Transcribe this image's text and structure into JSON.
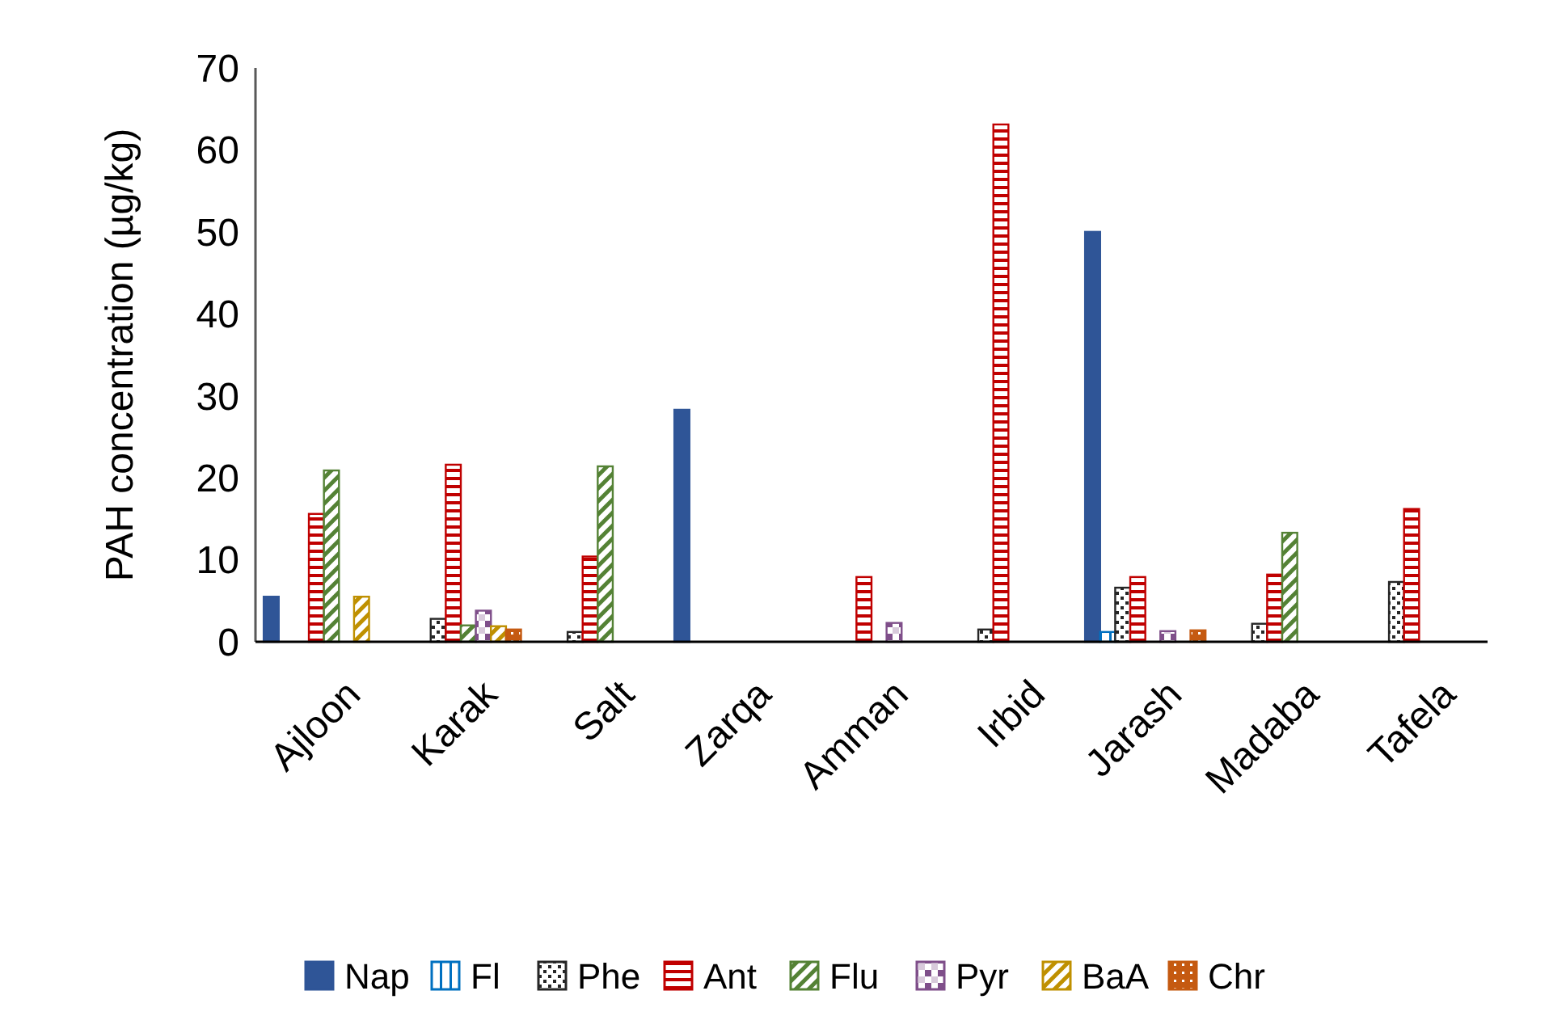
{
  "chart_data": {
    "type": "bar",
    "ylabel": "PAH concentration (µg/kg)",
    "categories": [
      "Ajloon",
      "Karak",
      "Salt",
      "Zarqa",
      "Amman",
      "Irbid",
      "Jarash",
      "Madaba",
      "Tafela"
    ],
    "series": [
      {
        "name": "Nap",
        "color": "#2f5597",
        "values": [
          5.5,
          null,
          null,
          28.3,
          null,
          null,
          50.0,
          null,
          null
        ]
      },
      {
        "name": "Fl",
        "color": "#0070c0",
        "values": [
          null,
          null,
          null,
          null,
          null,
          null,
          1.2,
          null,
          null
        ]
      },
      {
        "name": "Phe",
        "color": "#262626",
        "values": [
          null,
          2.8,
          1.2,
          null,
          null,
          1.5,
          6.6,
          2.2,
          7.3
        ]
      },
      {
        "name": "Ant",
        "color": "#c00000",
        "values": [
          15.6,
          21.6,
          10.4,
          null,
          7.9,
          63.1,
          7.9,
          8.2,
          16.2
        ]
      },
      {
        "name": "Flu",
        "color": "#548235",
        "values": [
          20.9,
          2.0,
          21.4,
          null,
          null,
          null,
          null,
          13.3,
          null
        ]
      },
      {
        "name": "Pyr",
        "color": "#7f4f8a",
        "values": [
          null,
          3.8,
          null,
          null,
          2.3,
          null,
          1.3,
          null,
          null
        ]
      },
      {
        "name": "BaA",
        "color": "#bf9000",
        "values": [
          5.5,
          1.9,
          null,
          null,
          null,
          null,
          null,
          null,
          null
        ]
      },
      {
        "name": "Chr",
        "color": "#c55a11",
        "values": [
          null,
          1.5,
          null,
          null,
          null,
          null,
          1.4,
          null,
          null
        ]
      }
    ],
    "ylim": [
      0,
      70
    ],
    "yticks": [
      0,
      10,
      20,
      30,
      40,
      50,
      60,
      70
    ],
    "grid": false,
    "legend": "bottom"
  }
}
